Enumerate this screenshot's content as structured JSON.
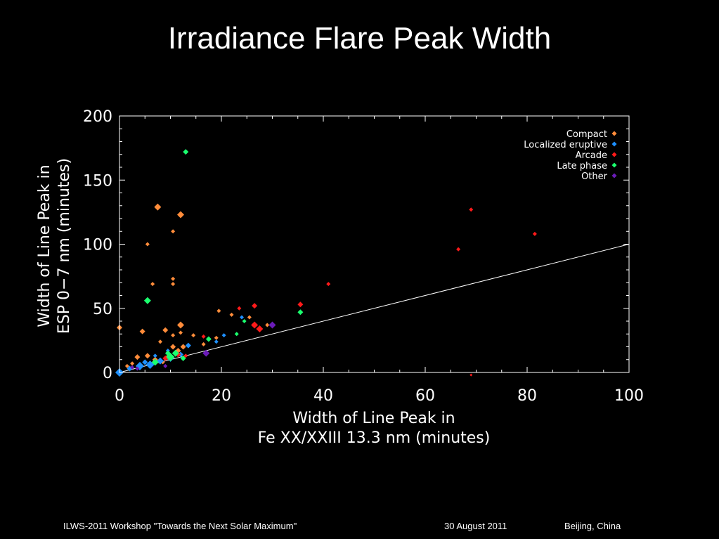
{
  "slide": {
    "title": "Irradiance Flare Peak Width",
    "footer_event": "ILWS-2011 Workshop \"Towards the Next Solar Maximum\"",
    "footer_date": "30  August  2011",
    "footer_place": "Beijing, China"
  },
  "chart_data": {
    "type": "scatter",
    "title": "",
    "xlabel_lines": [
      "Width of Line Peak in",
      "Fe XX/XXIII 13.3 nm (minutes)"
    ],
    "ylabel_lines": [
      "Width of Line Peak in",
      "ESP 0−7 nm (minutes)"
    ],
    "xlim": [
      0,
      100
    ],
    "ylim": [
      0,
      200
    ],
    "x_ticks": [
      0,
      20,
      40,
      60,
      80,
      100
    ],
    "y_ticks": [
      0,
      50,
      100,
      150,
      200
    ],
    "grid": false,
    "legend_position": "top-right",
    "axis_color": "#ffffff",
    "reference_line": {
      "x": [
        0,
        100
      ],
      "y": [
        0,
        100
      ],
      "color": "#ffffff"
    },
    "series": [
      {
        "name": "Compact",
        "color": "#ff8c3a",
        "points": [
          [
            7.5,
            129,
            5
          ],
          [
            12,
            123,
            5
          ],
          [
            5.5,
            100,
            3
          ],
          [
            10.5,
            110,
            3
          ],
          [
            10.5,
            73,
            3
          ],
          [
            10.5,
            69,
            3
          ],
          [
            6.5,
            69,
            3
          ],
          [
            0,
            35,
            4
          ],
          [
            4.5,
            32,
            4
          ],
          [
            9,
            33,
            4
          ],
          [
            12,
            37,
            5
          ],
          [
            10.5,
            29,
            3
          ],
          [
            12,
            31,
            3
          ],
          [
            14.5,
            29,
            3
          ],
          [
            8,
            24,
            3
          ],
          [
            10.5,
            20,
            4
          ],
          [
            12.5,
            20,
            4
          ],
          [
            16.5,
            22,
            3
          ],
          [
            19,
            27,
            3
          ],
          [
            19.5,
            48,
            3
          ],
          [
            22,
            45,
            3
          ],
          [
            25.5,
            43,
            3
          ],
          [
            29,
            37,
            3
          ],
          [
            3.5,
            12,
            4
          ],
          [
            5.5,
            13,
            4
          ],
          [
            7,
            10,
            4
          ],
          [
            9.5,
            12,
            4
          ],
          [
            11.5,
            17,
            4
          ],
          [
            8.5,
            8,
            3
          ],
          [
            2.5,
            7,
            3
          ],
          [
            1.5,
            5,
            3
          ]
        ]
      },
      {
        "name": "Localized eruptive",
        "color": "#1e90ff",
        "points": [
          [
            0,
            0,
            6
          ],
          [
            4,
            5,
            6
          ],
          [
            6,
            6,
            6
          ],
          [
            8,
            9,
            5
          ],
          [
            10,
            11,
            5
          ],
          [
            12,
            14,
            4
          ],
          [
            13.5,
            21,
            4
          ],
          [
            19,
            24,
            3
          ],
          [
            20.5,
            29,
            3
          ],
          [
            24,
            43,
            3
          ],
          [
            2,
            3,
            4
          ],
          [
            7,
            13,
            3
          ],
          [
            9.5,
            17,
            3
          ],
          [
            5,
            8,
            4
          ]
        ]
      },
      {
        "name": "Arcade",
        "color": "#ff1a1a",
        "points": [
          [
            69,
            127,
            3
          ],
          [
            81.5,
            108,
            3
          ],
          [
            66.5,
            96,
            3
          ],
          [
            41,
            69,
            3
          ],
          [
            35.5,
            53,
            4
          ],
          [
            26.5,
            52,
            4
          ],
          [
            23.5,
            50,
            3
          ],
          [
            26.5,
            37,
            5
          ],
          [
            27.5,
            34,
            5
          ],
          [
            16.5,
            28,
            3
          ],
          [
            11.5,
            14,
            4
          ],
          [
            9,
            11,
            4
          ],
          [
            69,
            -2,
            2
          ],
          [
            13,
            13,
            3
          ]
        ]
      },
      {
        "name": "Late phase",
        "color": "#1aff6e",
        "points": [
          [
            13,
            172,
            4
          ],
          [
            5.5,
            56,
            5
          ],
          [
            35.5,
            47,
            4
          ],
          [
            24.5,
            40,
            3
          ],
          [
            17.5,
            26,
            4
          ],
          [
            23,
            30,
            3
          ],
          [
            10,
            12,
            6
          ],
          [
            11,
            15,
            5
          ],
          [
            7,
            8,
            5
          ],
          [
            12.5,
            11,
            4
          ],
          [
            9.5,
            15,
            4
          ]
        ]
      },
      {
        "name": "Other",
        "color": "#6a1bb8",
        "points": [
          [
            30,
            37,
            5
          ],
          [
            17,
            15,
            5
          ],
          [
            3.5,
            3,
            3
          ],
          [
            9,
            5,
            3
          ],
          [
            2.5,
            4,
            3
          ]
        ]
      }
    ]
  }
}
